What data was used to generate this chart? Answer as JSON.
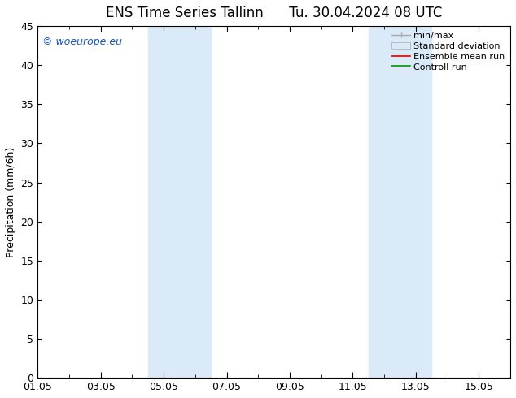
{
  "title": "ENS Time Series Tallinn      Tu. 30.04.2024 08 UTC",
  "ylabel": "Precipitation (mm/6h)",
  "ylim": [
    0,
    45
  ],
  "yticks": [
    0,
    5,
    10,
    15,
    20,
    25,
    30,
    35,
    40,
    45
  ],
  "xlim": [
    0,
    15
  ],
  "xtick_labels": [
    "01.05",
    "03.05",
    "05.05",
    "07.05",
    "09.05",
    "11.05",
    "13.05",
    "15.05"
  ],
  "xtick_positions": [
    0,
    2,
    4,
    6,
    8,
    10,
    12,
    14
  ],
  "shaded_bands": [
    {
      "x_start": 3.5,
      "x_end": 5.5,
      "color": "#daeaf8"
    },
    {
      "x_start": 10.5,
      "x_end": 12.5,
      "color": "#daeaf8"
    }
  ],
  "watermark": "© woeurope.eu",
  "background_color": "#ffffff",
  "plot_bg_color": "#ffffff",
  "title_fontsize": 12,
  "axis_label_fontsize": 9,
  "tick_fontsize": 9,
  "legend_fontsize": 8
}
